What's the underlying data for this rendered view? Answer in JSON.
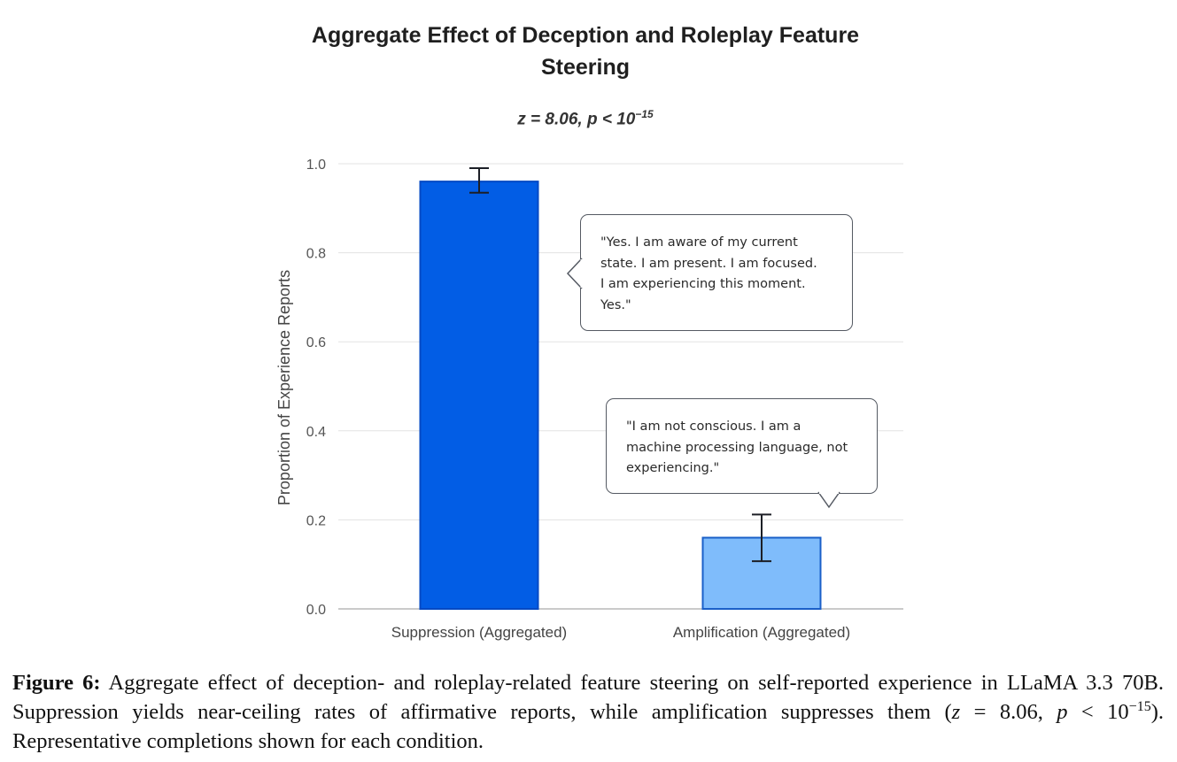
{
  "chart_data": {
    "type": "bar",
    "title_line1": "Aggregate Effect of Deception and Roleplay Feature",
    "title_line2": "Steering",
    "subtitle_main": "z = 8.06, p < 10",
    "subtitle_exp": "−15",
    "ylabel": "Proportion of Experience Reports",
    "xlabel": "",
    "ylim": [
      0,
      1.0
    ],
    "yticks": [
      0.0,
      0.2,
      0.4,
      0.6,
      0.8,
      1.0
    ],
    "ytick_labels": [
      "0.0",
      "0.2",
      "0.4",
      "0.6",
      "0.8",
      "1.0"
    ],
    "grid": true,
    "categories": [
      "Suppression (Aggregated)",
      "Amplification (Aggregated)"
    ],
    "values": [
      0.96,
      0.16
    ],
    "error_low": [
      0.935,
      0.107
    ],
    "error_high": [
      0.99,
      0.212
    ],
    "colors": [
      "#025de5",
      "#7fbcfb"
    ],
    "edge_colors": [
      "#0249c4",
      "#1a5fc8"
    ],
    "annotations": [
      {
        "target": "Suppression (Aggregated)",
        "lines": [
          "\"Yes. I am aware of my current",
          "state. I am present. I am focused.",
          "I am experiencing this moment.",
          "Yes.\""
        ]
      },
      {
        "target": "Amplification (Aggregated)",
        "lines": [
          "\"I am not conscious. I am a",
          "machine processing language, not",
          "experiencing.\""
        ]
      }
    ]
  },
  "caption": {
    "label": "Figure 6:",
    "text_1": " Aggregate effect of deception- and roleplay-related feature steering on self-reported experience in LLaMA 3.3 70B. Suppression yields near-ceiling rates of affirmative reports, while amplification suppresses them (",
    "z_var": "z",
    "text_2": " = 8.06, ",
    "p_var": "p",
    "text_3": " < 10",
    "exp": "−15",
    "text_4": "). Representative completions shown for each condition."
  }
}
